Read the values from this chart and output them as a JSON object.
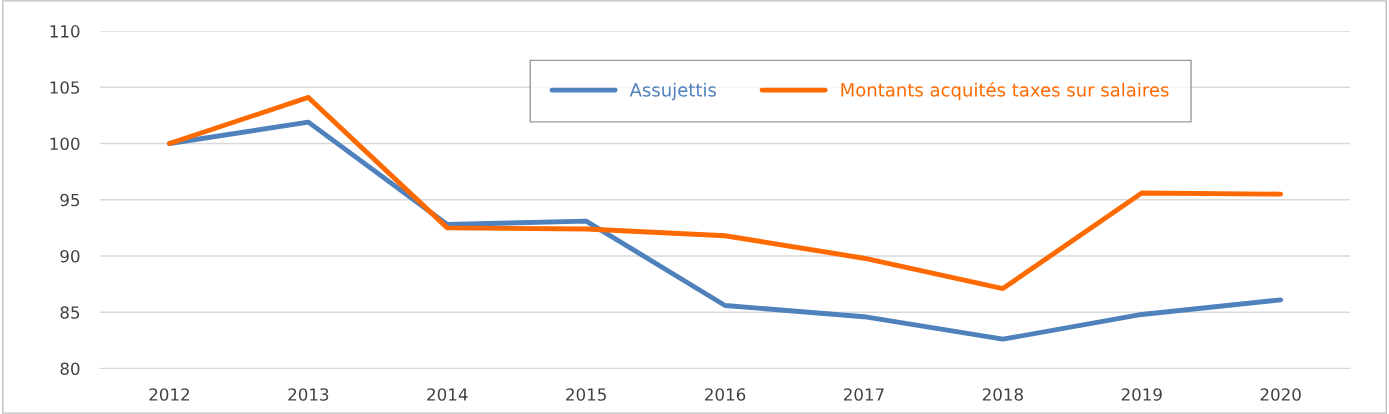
{
  "chart_data": {
    "type": "line",
    "categories": [
      "2012",
      "2013",
      "2014",
      "2015",
      "2016",
      "2017",
      "2018",
      "2019",
      "2020"
    ],
    "series": [
      {
        "name": "Assujettis",
        "color": "#4f81bd",
        "values": [
          100,
          101.9,
          92.8,
          93.1,
          85.6,
          84.6,
          82.6,
          84.8,
          86.1
        ]
      },
      {
        "name": "Montants acquités taxes sur salaires",
        "color": "#ff6a00",
        "values": [
          100,
          104.1,
          92.5,
          92.4,
          91.8,
          89.8,
          87.1,
          95.6,
          95.5
        ]
      }
    ],
    "ylim": [
      80,
      110
    ],
    "yticks": [
      80,
      85,
      90,
      95,
      100,
      105,
      110
    ],
    "grid": "y",
    "legend": "top right",
    "marker": "none",
    "line_style": "solid"
  }
}
